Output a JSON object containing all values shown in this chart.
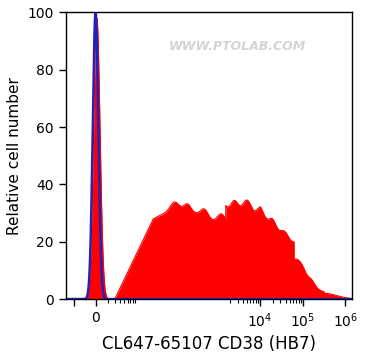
{
  "title": "",
  "xlabel": "CL647-65107 CD38 (HB7)",
  "ylabel": "Relative cell number",
  "ylim": [
    0,
    100
  ],
  "watermark": "WWW.PTOLAB.COM",
  "watermark_color": "#cccccc",
  "background_color": "#ffffff",
  "plot_bg_color": "#ffffff",
  "blue_line_color": "#2222bb",
  "red_fill_color": "#ff0000",
  "xlabel_fontsize": 12,
  "ylabel_fontsize": 11,
  "tick_fontsize": 10,
  "xlim": [
    -0.55,
    6.15
  ],
  "x_tick_positions": [
    -0.35,
    0.15,
    4.0,
    5.0,
    6.0
  ],
  "x_tick_labels": [
    "",
    "0",
    "10^4",
    "10^5",
    "10^6"
  ],
  "y_ticks": [
    0,
    20,
    40,
    60,
    80,
    100
  ]
}
